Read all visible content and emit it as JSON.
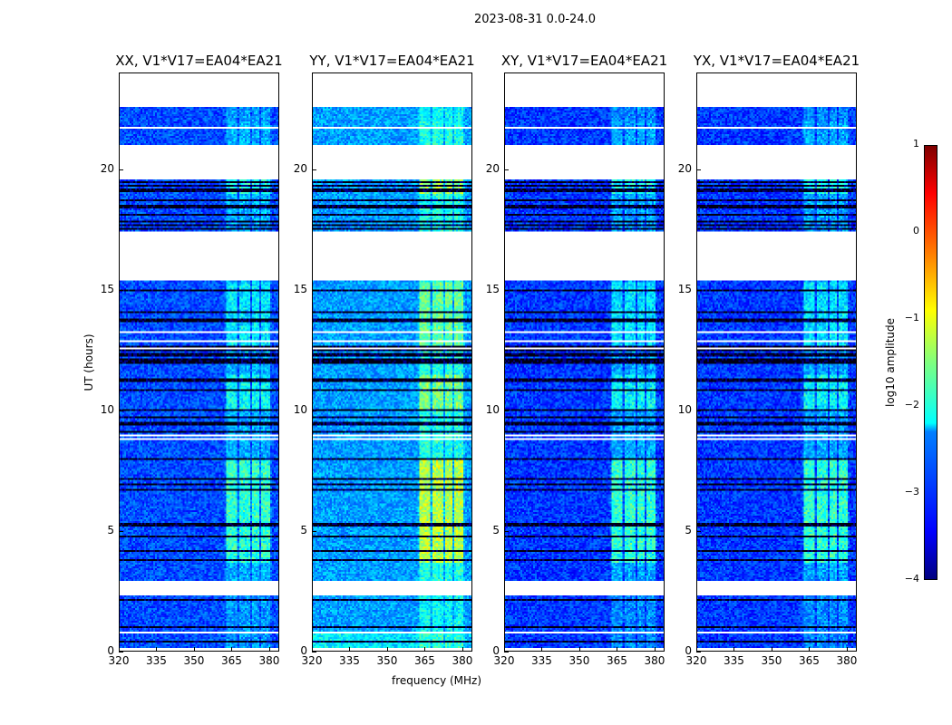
{
  "chart_data": {
    "type": "heatmap",
    "suptitle": "2023-08-31 0.0-24.0",
    "xlabel": "frequency (MHz)",
    "ylabel": "UT (hours)",
    "xlim": [
      320,
      384
    ],
    "ylim": [
      0,
      24
    ],
    "xticks": [
      320,
      335,
      350,
      365,
      380
    ],
    "yticks": [
      0,
      5,
      10,
      15,
      20
    ],
    "colormap": "jet",
    "panels": [
      {
        "title": "XX, V1*V17=EA04*EA21",
        "base_level": -3.0,
        "rfi_boost": 1.3
      },
      {
        "title": "YY, V1*V17=EA04*EA21",
        "base_level": -2.6,
        "rfi_boost": 1.6
      },
      {
        "title": "XY, V1*V17=EA04*EA21",
        "base_level": -3.1,
        "rfi_boost": 1.4
      },
      {
        "title": "YX, V1*V17=EA04*EA21",
        "base_level": -3.1,
        "rfi_boost": 1.4
      }
    ],
    "rfi_bands_mhz": [
      [
        363,
        367
      ],
      [
        368,
        372
      ],
      [
        373,
        376
      ],
      [
        377,
        380
      ]
    ],
    "flagged_hours": [
      [
        22.6,
        24.0
      ],
      [
        20.2,
        21.0
      ],
      [
        19.6,
        20.2
      ],
      [
        15.4,
        17.4
      ],
      [
        12.5,
        12.6
      ],
      [
        2.4,
        2.9
      ]
    ],
    "colorbar": {
      "label": "log10 amplitude",
      "range": [
        -4,
        1
      ],
      "ticks": [
        -4,
        -3,
        -2,
        -1,
        0,
        1
      ]
    }
  }
}
